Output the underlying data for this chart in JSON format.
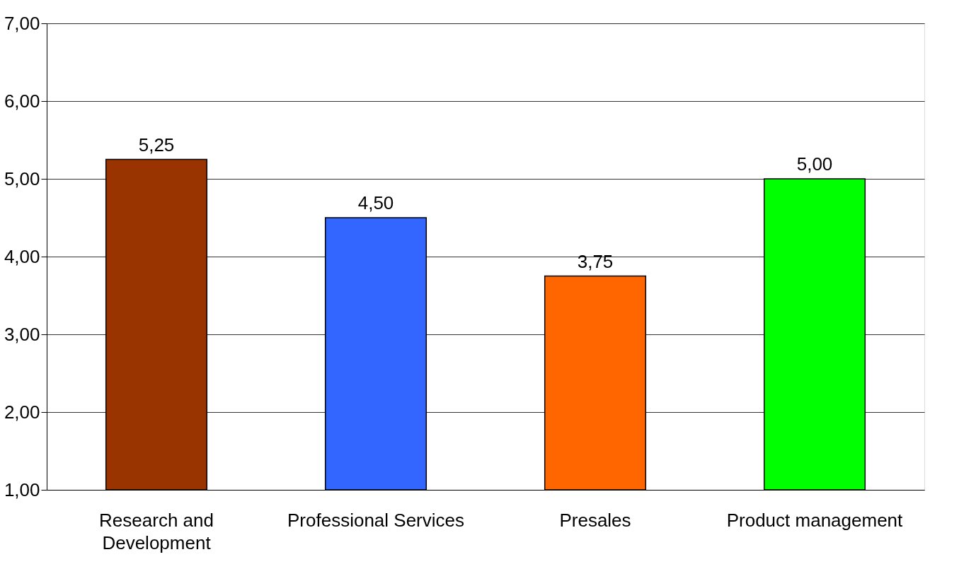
{
  "chart_data": {
    "type": "bar",
    "categories": [
      "Research and Development",
      "Professional Services",
      "Presales",
      "Product management"
    ],
    "values": [
      5.25,
      4.5,
      3.75,
      5.0
    ],
    "colors": [
      "#993300",
      "#3366ff",
      "#ff6600",
      "#00ff00"
    ],
    "value_labels": [
      "5,25",
      "4,50",
      "3,75",
      "5,00"
    ],
    "ylim": [
      1,
      7
    ],
    "yticks": [
      {
        "value": 1,
        "label": "1,00"
      },
      {
        "value": 2,
        "label": "2,00"
      },
      {
        "value": 3,
        "label": "3,00"
      },
      {
        "value": 4,
        "label": "4,00"
      },
      {
        "value": 5,
        "label": "5,00"
      },
      {
        "value": 6,
        "label": "6,00"
      },
      {
        "value": 7,
        "label": "7,00"
      }
    ],
    "grid": "y"
  }
}
